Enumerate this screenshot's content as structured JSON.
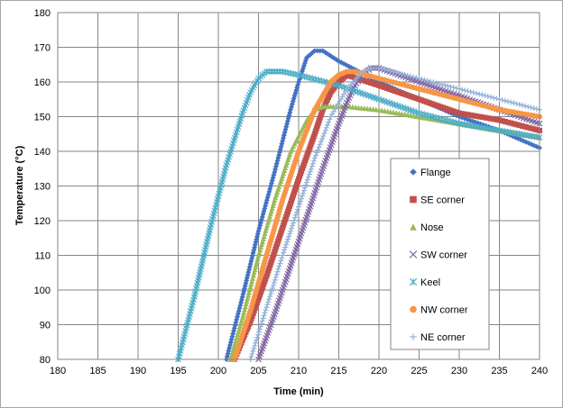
{
  "chart_data": {
    "type": "scatter",
    "xlabel": "Time (min)",
    "ylabel": "Temperature (°C)",
    "xlim": [
      180,
      240
    ],
    "ylim": [
      80,
      180
    ],
    "x_ticks": [
      180,
      185,
      190,
      195,
      200,
      205,
      210,
      215,
      220,
      225,
      230,
      235,
      240
    ],
    "y_ticks": [
      80,
      90,
      100,
      110,
      120,
      130,
      140,
      150,
      160,
      170,
      180
    ],
    "grid": true,
    "legend_position": "right",
    "series": [
      {
        "name": "Flange",
        "color": "#4472c4",
        "marker": "diamond",
        "x": [
          201,
          203,
          205,
          207,
          209,
          210,
          211,
          212,
          213,
          215,
          220,
          225,
          230,
          235,
          240
        ],
        "y": [
          80,
          98,
          117,
          134,
          152,
          160,
          167,
          169,
          169,
          166,
          160,
          155,
          150,
          146,
          141
        ]
      },
      {
        "name": "SE corner",
        "color": "#c0504d",
        "marker": "square",
        "x": [
          202,
          204,
          206,
          208,
          210,
          212,
          213,
          214,
          215,
          216,
          220,
          225,
          230,
          235,
          240
        ],
        "y": [
          80,
          91,
          104,
          118,
          132,
          145,
          152,
          157,
          160,
          162,
          159,
          155,
          151,
          149,
          146
        ]
      },
      {
        "name": "Nose",
        "color": "#9bbb59",
        "marker": "triangle",
        "x": [
          201.5,
          203,
          205,
          207,
          209,
          211,
          212,
          213,
          214,
          216,
          220,
          225,
          230,
          235,
          240
        ],
        "y": [
          80,
          92,
          110,
          126,
          140,
          149,
          152,
          153,
          153,
          153,
          152,
          150,
          148,
          146,
          144
        ]
      },
      {
        "name": "SW corner",
        "color": "#8064a2",
        "marker": "x",
        "x": [
          205,
          207,
          209,
          211,
          213,
          215,
          216,
          217,
          218,
          219,
          220,
          225,
          230,
          235,
          240
        ],
        "y": [
          80,
          93,
          107,
          121,
          135,
          148,
          154,
          159,
          162,
          164,
          164,
          160,
          156,
          152,
          148
        ]
      },
      {
        "name": "Keel",
        "color": "#4bacc6",
        "marker": "star",
        "x": [
          195,
          197,
          199,
          201,
          203,
          204,
          205,
          206,
          207,
          208,
          210,
          215,
          220,
          225,
          230,
          235,
          240
        ],
        "y": [
          80,
          98,
          118,
          136,
          151,
          157,
          161,
          163,
          163,
          163,
          162,
          159,
          155,
          151,
          148,
          146,
          144
        ]
      },
      {
        "name": "NW corner",
        "color": "#f79646",
        "marker": "circle",
        "x": [
          202,
          204,
          206,
          208,
          210,
          212,
          214,
          215,
          216,
          217,
          220,
          225,
          230,
          235,
          240
        ],
        "y": [
          80,
          94,
          110,
          126,
          140,
          152,
          160,
          162,
          163,
          163,
          161,
          158,
          155,
          152,
          150
        ]
      },
      {
        "name": "NE corner",
        "color": "#95b3d7",
        "marker": "plus",
        "x": [
          204,
          206,
          208,
          210,
          212,
          214,
          216,
          218,
          219,
          220,
          225,
          230,
          235,
          240
        ],
        "y": [
          80,
          95,
          110,
          124,
          138,
          150,
          158,
          163,
          164,
          164,
          161,
          158,
          155,
          152
        ]
      }
    ]
  }
}
